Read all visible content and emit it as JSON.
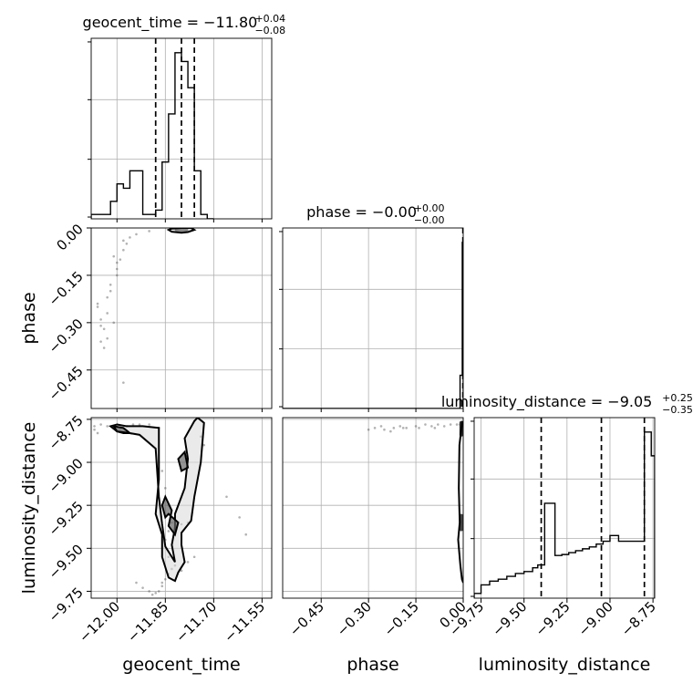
{
  "chart_data": {
    "type": "corner",
    "parameters": [
      "geocent_time",
      "phase",
      "luminosity_distance"
    ],
    "titles": [
      {
        "param": "geocent_time",
        "label": "geocent_time = −11.80",
        "plus": "+0.04",
        "minus": "−0.08"
      },
      {
        "param": "phase",
        "label": "phase = −0.00",
        "plus": "+0.00",
        "minus": "−0.00"
      },
      {
        "param": "luminosity_distance",
        "label": "luminosity_distance = −9.05",
        "plus": "+0.25",
        "minus": "−0.35"
      }
    ],
    "ranges": {
      "geocent_time": [
        -12.08,
        -11.52
      ],
      "phase": [
        -0.572,
        0.0
      ],
      "luminosity_distance": [
        -9.79,
        -8.74
      ]
    },
    "ticks": {
      "geocent_time": {
        "values": [
          -12.0,
          -11.85,
          -11.7,
          -11.55
        ],
        "labels": [
          "−12.00",
          "−11.85",
          "−11.70",
          "−11.55"
        ]
      },
      "phase": {
        "values": [
          -0.45,
          -0.3,
          -0.15,
          0.0
        ],
        "labels": [
          "−0.45",
          "−0.30",
          "−0.15",
          "0.00"
        ]
      },
      "luminosity_distance": {
        "values": [
          -9.75,
          -9.5,
          -9.25,
          -9.0,
          -8.75
        ],
        "labels": [
          "−9.75",
          "−9.50",
          "−9.25",
          "−9.00",
          "−8.75"
        ]
      }
    },
    "quantiles": {
      "geocent_time": [
        -11.88,
        -11.8,
        -11.76
      ],
      "phase": [
        -0.001,
        0.0,
        0.0
      ],
      "luminosity_distance": [
        -9.4,
        -9.05,
        -8.8
      ]
    },
    "histograms": {
      "geocent_time": {
        "edges": [
          -12.08,
          -12.04,
          -12.02,
          -12.0,
          -11.98,
          -11.96,
          -11.94,
          -11.92,
          -11.9,
          -11.88,
          -11.86,
          -11.84,
          -11.82,
          -11.8,
          -11.78,
          -11.76,
          -11.74,
          -11.72,
          -11.7
        ],
        "counts": [
          0.5,
          0.5,
          2,
          4,
          3.5,
          5.5,
          5.5,
          0.5,
          0.5,
          1,
          6.5,
          12,
          19,
          18,
          15,
          5.5,
          0.5,
          0
        ]
      },
      "phase": {
        "edges": [
          -0.572,
          -0.5,
          -0.4,
          -0.3,
          -0.2,
          -0.1,
          -0.01,
          -0.003,
          0.0
        ],
        "counts": [
          0,
          0,
          0,
          0,
          0,
          0,
          0.2,
          1
        ]
      },
      "luminosity_distance": {
        "edges": [
          -9.79,
          -9.75,
          -9.7,
          -9.65,
          -9.6,
          -9.55,
          -9.5,
          -9.45,
          -9.42,
          -9.38,
          -9.32,
          -9.28,
          -9.24,
          -9.2,
          -9.16,
          -9.12,
          -9.08,
          -9.04,
          -9.0,
          -8.95,
          -8.9,
          -8.85,
          -8.8,
          -8.76,
          -8.74
        ],
        "counts": [
          0.5,
          1.4,
          1.8,
          2.0,
          2.3,
          2.6,
          2.8,
          3.2,
          3.5,
          10.0,
          4.5,
          4.6,
          4.8,
          5.0,
          5.2,
          5.4,
          5.7,
          6.0,
          6.6,
          6.0,
          6.0,
          6.0,
          17.5,
          15.0
        ]
      }
    },
    "samples": {
      "geocent_time_vs_phase": {
        "x": [
          -12.05,
          -12.04,
          -12.06,
          -12.03,
          -12.02,
          -12.03,
          -12.01,
          -12.0,
          -11.99,
          -11.98,
          -12.02,
          -12.04,
          -12.03,
          -12.0,
          -11.97,
          -11.94,
          -11.9,
          -11.82,
          -11.8,
          -11.78,
          -11.79,
          -11.81,
          -11.98,
          -12.01,
          -12.05,
          -12.06,
          -12.05,
          -11.96,
          -12.0,
          -11.98
        ],
        "y": [
          -0.29,
          -0.32,
          -0.25,
          -0.22,
          -0.18,
          -0.35,
          -0.3,
          -0.13,
          -0.1,
          -0.07,
          -0.2,
          -0.38,
          -0.27,
          -0.15,
          -0.05,
          -0.02,
          -0.01,
          -0.005,
          -0.004,
          -0.006,
          -0.003,
          -0.002,
          -0.04,
          -0.09,
          -0.31,
          -0.24,
          -0.36,
          -0.03,
          -0.11,
          -0.49
        ]
      },
      "geocent_time_vs_luminosity_distance": {
        "x": [
          -12.07,
          -12.05,
          -12.03,
          -12.01,
          -11.99,
          -11.97,
          -11.95,
          -11.93,
          -11.9,
          -11.87,
          -11.86,
          -11.85,
          -11.84,
          -11.83,
          -11.85,
          -11.84,
          -11.82,
          -11.8,
          -11.78,
          -11.76,
          -11.74,
          -11.73,
          -11.86,
          -11.85,
          -11.84,
          -11.83,
          -11.86,
          -11.87,
          -11.88,
          -11.89,
          -11.9,
          -11.92,
          -11.94,
          -11.84,
          -11.82,
          -11.8,
          -11.78,
          -11.62,
          -11.6,
          -11.66,
          -12.06,
          -12.07
        ],
        "y": [
          -8.79,
          -8.78,
          -8.79,
          -8.8,
          -8.8,
          -8.79,
          -8.78,
          -8.78,
          -8.78,
          -8.8,
          -9.05,
          -9.15,
          -9.25,
          -9.35,
          -9.45,
          -9.55,
          -9.6,
          -9.63,
          -9.58,
          -9.55,
          -8.85,
          -8.9,
          -9.7,
          -9.68,
          -9.65,
          -9.62,
          -9.72,
          -9.75,
          -9.76,
          -9.77,
          -9.75,
          -9.73,
          -9.7,
          -9.4,
          -9.38,
          -9.36,
          -9.35,
          -9.32,
          -9.42,
          -9.2,
          -8.83,
          -8.81
        ]
      },
      "phase_vs_luminosity_distance": {
        "x": [
          -0.3,
          -0.28,
          -0.25,
          -0.22,
          -0.2,
          -0.18,
          -0.15,
          -0.12,
          -0.1,
          -0.08,
          -0.06,
          -0.04,
          -0.02,
          -0.01,
          -0.26,
          -0.23,
          -0.19,
          -0.14,
          -0.09
        ],
        "y": [
          -8.81,
          -8.8,
          -8.81,
          -8.8,
          -8.79,
          -8.8,
          -8.79,
          -8.78,
          -8.79,
          -8.78,
          -8.79,
          -8.78,
          -8.78,
          -8.78,
          -8.79,
          -8.82,
          -8.8,
          -8.8,
          -8.8
        ]
      }
    },
    "contours": {
      "geocent_time_vs_phase": [
        {
          "level": "outer",
          "x": [
            -11.83,
            -11.8,
            -11.77,
            -11.76,
            -11.78,
            -11.8,
            -11.83,
            -11.84
          ],
          "y": [
            -0.002,
            0.0,
            0.0,
            -0.006,
            -0.013,
            -0.015,
            -0.012,
            -0.006
          ]
        }
      ],
      "geocent_time_vs_luminosity_distance": [
        {
          "level": "outer",
          "x": [
            -12.0,
            -11.97,
            -11.92,
            -11.87,
            -11.87,
            -11.87,
            -11.88,
            -11.86,
            -11.86,
            -11.84,
            -11.82,
            -11.81,
            -11.79,
            -11.8,
            -11.8,
            -11.77,
            -11.76,
            -11.74,
            -11.73,
            -11.75,
            -11.76,
            -11.79,
            -11.78,
            -11.79,
            -11.82,
            -11.82,
            -11.83,
            -11.82,
            -11.85,
            -11.86,
            -11.87,
            -11.88,
            -11.93,
            -11.96,
            -11.98,
            -12.0,
            -12.02,
            -12.0
          ],
          "y": [
            -8.78,
            -8.79,
            -8.79,
            -8.8,
            -8.9,
            -9.1,
            -9.3,
            -9.42,
            -9.55,
            -9.67,
            -9.69,
            -9.64,
            -9.58,
            -9.48,
            -9.41,
            -9.34,
            -9.2,
            -9.0,
            -8.77,
            -8.74,
            -8.76,
            -8.86,
            -8.98,
            -9.15,
            -9.3,
            -9.38,
            -9.48,
            -9.58,
            -9.49,
            -9.36,
            -9.2,
            -8.92,
            -8.84,
            -8.83,
            -8.83,
            -8.82,
            -8.79,
            -8.78
          ]
        },
        {
          "level": "inner",
          "x": [
            -11.85,
            -11.83,
            -11.84,
            -11.82,
            -11.81,
            -11.84,
            -11.85,
            -11.86
          ],
          "y": [
            -9.2,
            -9.28,
            -9.37,
            -9.42,
            -9.35,
            -9.3,
            -9.32,
            -9.25
          ]
        },
        {
          "level": "inner",
          "x": [
            -11.79,
            -11.78,
            -11.8,
            -11.81
          ],
          "y": [
            -8.94,
            -9.03,
            -9.05,
            -8.98
          ]
        },
        {
          "level": "inner",
          "x": [
            -12.01,
            -11.98,
            -11.96,
            -12.0
          ],
          "y": [
            -8.79,
            -8.8,
            -8.83,
            -8.82
          ]
        }
      ],
      "phase_vs_luminosity_distance": [
        {
          "level": "outer",
          "x": [
            -0.003,
            -0.012,
            -0.014,
            -0.011,
            -0.016,
            -0.009,
            -0.004,
            -0.0
          ],
          "y": [
            -8.76,
            -8.9,
            -9.15,
            -9.35,
            -9.45,
            -9.6,
            -9.68,
            -9.7
          ]
        }
      ]
    },
    "dense_regions": {
      "geocent_time_vs_phase": [
        {
          "x": [
            -11.82,
            -11.78
          ],
          "y": [
            -0.012,
            0.0
          ],
          "shade": "#222222"
        }
      ],
      "phase_vs_luminosity_distance": [
        {
          "x": [
            -0.012,
            0.0
          ],
          "y": [
            -8.85,
            -8.76
          ],
          "shade": "#333333"
        },
        {
          "x": [
            -0.012,
            0.0
          ],
          "y": [
            -9.4,
            -9.3
          ],
          "shade": "#444444"
        }
      ]
    },
    "axis_labels": {
      "geocent_time": "geocent_time",
      "phase": "phase",
      "luminosity_distance": "luminosity_distance"
    },
    "grid": true
  }
}
